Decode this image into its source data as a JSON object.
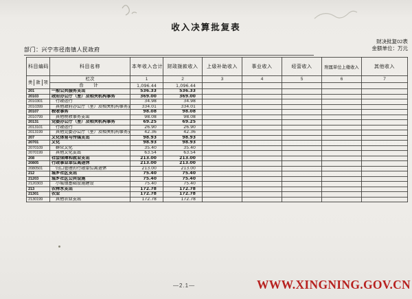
{
  "meta": {
    "title": "收入决算批复表",
    "form_no": "财决批复02表",
    "unit_note": "金额单位：万元",
    "department": "部门：兴宁市径南镇人民政府",
    "page_no": "—2.1—",
    "watermark": "WWW.XINGNING.GOV.CN",
    "colors": {
      "watermark_red": "#b7211f",
      "ink": "#2a2a27",
      "paper": "#efede9"
    }
  },
  "table": {
    "columns": [
      "科目编码",
      "科目名称",
      "本年收入合计",
      "财政拨款收入",
      "上级补助收入",
      "事业收入",
      "经营收入",
      "附属单位上缴收入",
      "其他收入"
    ],
    "code_subcols": [
      "类",
      "款",
      "项"
    ],
    "lanci_row": {
      "label": "栏次",
      "numbers": [
        "1",
        "2",
        "3",
        "4",
        "5",
        "6",
        "7"
      ]
    },
    "total_row": {
      "name": "合　计",
      "v1": "1,096.44",
      "v2": "1,096.44"
    },
    "rows": [
      {
        "code": "201",
        "name": "一般公共服务支出",
        "v1": "536.33",
        "v2": "536.33",
        "level": 1
      },
      {
        "code": "20103",
        "name": "政府办公厅（室）及相关机构事务",
        "v1": "369.00",
        "v2": "369.00",
        "level": 2
      },
      {
        "code": "2010301",
        "name": "行政运行",
        "v1": "34.98",
        "v2": "34.98",
        "level": 3
      },
      {
        "code": "2010399",
        "name": "其他政府办公厅（室）及相关机构事务支出",
        "v1": "334.01",
        "v2": "334.01",
        "level": 3
      },
      {
        "code": "20107",
        "name": "税收事务",
        "v1": "98.08",
        "v2": "98.08",
        "level": 2
      },
      {
        "code": "2010799",
        "name": "其他税收事务支出",
        "v1": "98.08",
        "v2": "98.08",
        "level": 3
      },
      {
        "code": "20131",
        "name": "党委办公厅（室）及相关机构事务",
        "v1": "69.25",
        "v2": "69.25",
        "level": 2
      },
      {
        "code": "2013101",
        "name": "行政运行",
        "v1": "26.90",
        "v2": "26.90",
        "level": 3
      },
      {
        "code": "2013199",
        "name": "其他党委办公厅（室）及相关机构事务支出",
        "v1": "42.36",
        "v2": "42.36",
        "level": 3
      },
      {
        "code": "207",
        "name": "文化体育与传媒支出",
        "v1": "98.93",
        "v2": "98.93",
        "level": 1
      },
      {
        "code": "20701",
        "name": "文化",
        "v1": "98.93",
        "v2": "98.93",
        "level": 2
      },
      {
        "code": "2070109",
        "name": "群众文化",
        "v1": "35.40",
        "v2": "35.40",
        "level": 3
      },
      {
        "code": "2070199",
        "name": "其他文化支出",
        "v1": "63.54",
        "v2": "63.54",
        "level": 3
      },
      {
        "code": "208",
        "name": "社会保障和就业支出",
        "v1": "213.00",
        "v2": "213.00",
        "level": 1
      },
      {
        "code": "20805",
        "name": "行政事业单位离退休",
        "v1": "213.00",
        "v2": "213.00",
        "level": 2
      },
      {
        "code": "2080501",
        "name": "归口管理的行政单位离退休",
        "v1": "213.00",
        "v2": "213.00",
        "level": 3
      },
      {
        "code": "212",
        "name": "城乡社区支出",
        "v1": "75.40",
        "v2": "75.40",
        "level": 1
      },
      {
        "code": "21203",
        "name": "城乡社区公共设施",
        "v1": "75.40",
        "v2": "75.40",
        "level": 2
      },
      {
        "code": "2120303",
        "name": "小城镇基础设施建设",
        "v1": "75.40",
        "v2": "75.40",
        "level": 3
      },
      {
        "code": "213",
        "name": "农林水支出",
        "v1": "172.78",
        "v2": "172.78",
        "level": 1
      },
      {
        "code": "21301",
        "name": "农业",
        "v1": "172.78",
        "v2": "172.78",
        "level": 2
      },
      {
        "code": "2130199",
        "name": "其他农业支出",
        "v1": "172.78",
        "v2": "172.78",
        "level": 3
      }
    ]
  }
}
